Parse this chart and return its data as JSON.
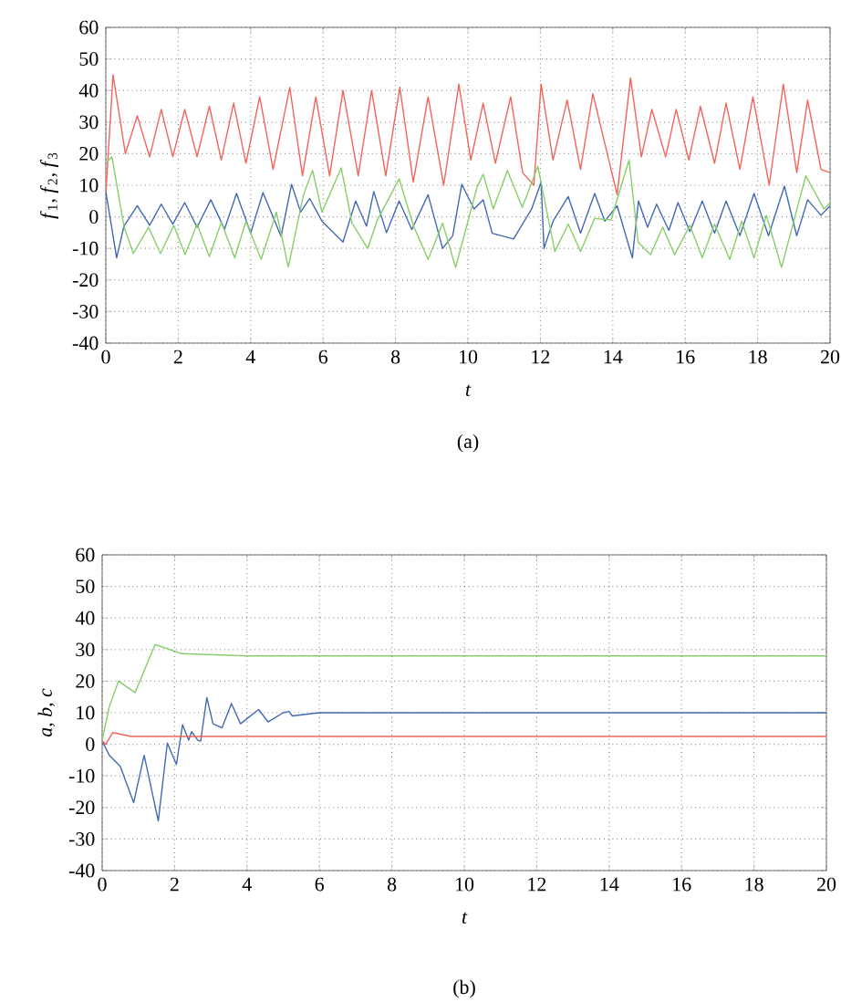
{
  "chart_data": [
    {
      "type": "line",
      "xlabel": "t",
      "ylabel": "*f*$_{1}$, *f*$_{2}$, *f*$_{3}$",
      "annotations": [
        "(a)"
      ],
      "xlim": [
        0,
        20
      ],
      "ylim": [
        -40,
        60
      ],
      "xticks": [
        0,
        2,
        4,
        6,
        8,
        10,
        12,
        14,
        16,
        18,
        20
      ],
      "yticks": [
        -40,
        -30,
        -20,
        -10,
        0,
        10,
        20,
        30,
        40,
        50,
        60
      ],
      "grid": true,
      "series": [
        {
          "color": "#f2645a",
          "x": [
            0,
            0.2,
            0.54,
            0.87,
            1.21,
            1.53,
            1.85,
            2.18,
            2.52,
            2.86,
            3.19,
            3.53,
            3.87,
            4.25,
            4.62,
            5.08,
            5.43,
            5.8,
            6.18,
            6.55,
            6.97,
            7.34,
            7.73,
            8.12,
            8.49,
            8.9,
            9.33,
            9.75,
            10.08,
            10.42,
            10.76,
            11.18,
            11.51,
            11.82,
            12.02,
            12.35,
            12.74,
            13.11,
            13.45,
            14.12,
            14.49,
            14.79,
            15.08,
            15.46,
            15.75,
            16.1,
            16.42,
            16.81,
            17.13,
            17.51,
            17.87,
            18.32,
            18.71,
            19.08,
            19.38,
            19.75,
            20
          ],
          "values": [
            7,
            45,
            20,
            32,
            19,
            34,
            19,
            34,
            19,
            35,
            18,
            36,
            17,
            38,
            15,
            41,
            13,
            38,
            13,
            40,
            13,
            40,
            13,
            41,
            11,
            38,
            10,
            42,
            18,
            36,
            17,
            38,
            14,
            10,
            42,
            18,
            37,
            15,
            39,
            7,
            44,
            19,
            34,
            19,
            34,
            18,
            35,
            17,
            36,
            15,
            38,
            10,
            42,
            14,
            37,
            15,
            14
          ]
        },
        {
          "color": "#4169b4",
          "x": [
            0,
            0.3,
            0.5,
            0.87,
            1.21,
            1.53,
            1.85,
            2.18,
            2.52,
            2.9,
            3.28,
            3.61,
            4.0,
            4.34,
            4.84,
            5.13,
            5.38,
            5.63,
            5.97,
            6.55,
            6.9,
            7.2,
            7.4,
            7.75,
            8.1,
            8.45,
            8.9,
            9.3,
            9.58,
            9.83,
            10.17,
            10.42,
            10.67,
            11.26,
            11.76,
            12.02,
            12.1,
            12.35,
            12.77,
            13.11,
            13.5,
            13.78,
            14.12,
            14.54,
            14.71,
            14.96,
            15.21,
            15.55,
            15.8,
            16.13,
            16.47,
            16.81,
            17.13,
            17.51,
            17.9,
            18.3,
            18.74,
            19.08,
            19.38,
            19.75,
            20
          ],
          "values": [
            8,
            -13,
            -3,
            3.5,
            -2.7,
            4,
            -2.3,
            4.5,
            -3.3,
            5.4,
            -3.9,
            7.4,
            -5.2,
            7.7,
            -6.2,
            10.3,
            1.5,
            5.8,
            -1.4,
            -8,
            5,
            -3,
            8,
            -5,
            5,
            -4,
            7,
            -10,
            -6,
            10.3,
            2.5,
            5.4,
            -5.2,
            -7,
            2.5,
            11,
            -10,
            -1.4,
            6.4,
            -5.2,
            7.4,
            -1.4,
            3.5,
            -13,
            5,
            -3.3,
            4,
            -4.3,
            4.5,
            -4.7,
            5,
            -5.2,
            5,
            -6,
            7.4,
            -6,
            9.7,
            -6,
            5.4,
            0.5,
            3.5
          ]
        },
        {
          "color": "#86cf6a",
          "x": [
            0,
            0.17,
            0.5,
            0.76,
            1.18,
            1.51,
            1.88,
            2.19,
            2.52,
            2.86,
            3.19,
            3.56,
            3.87,
            4.29,
            4.71,
            5.04,
            5.46,
            5.71,
            5.97,
            6.5,
            6.8,
            7.23,
            7.5,
            8.1,
            8.5,
            8.9,
            9.3,
            9.66,
            10.25,
            10.42,
            10.7,
            11.09,
            11.5,
            11.93,
            12.4,
            12.77,
            13.11,
            13.5,
            13.95,
            14.45,
            14.7,
            15.04,
            15.38,
            15.71,
            16.13,
            16.47,
            16.81,
            17.23,
            17.56,
            17.9,
            18.24,
            18.66,
            19.33,
            19.83,
            20
          ],
          "values": [
            17,
            19,
            -3,
            -11.6,
            -3.3,
            -11.6,
            -2.7,
            -12,
            -2.3,
            -12.6,
            -1.7,
            -13,
            -1.4,
            -13.5,
            1.5,
            -15.9,
            7,
            14.7,
            1.5,
            15.5,
            -2,
            -10,
            -1,
            12,
            -3,
            -13.5,
            -2,
            -16,
            9.3,
            13.5,
            2.5,
            14.7,
            3,
            16,
            -11,
            -2.3,
            -11,
            -0.5,
            -1,
            18,
            -8,
            -12,
            -3.3,
            -12,
            -2.7,
            -13,
            -2.3,
            -13.5,
            -1.4,
            -13,
            0.5,
            -16,
            13,
            2.5,
            4.4
          ]
        }
      ]
    },
    {
      "type": "line",
      "xlabel": "t",
      "ylabel": "*a*, *b*, *c*",
      "annotations": [
        "(b)"
      ],
      "xlim": [
        0,
        20
      ],
      "ylim": [
        -40,
        60
      ],
      "xticks": [
        0,
        2,
        4,
        6,
        8,
        10,
        12,
        14,
        16,
        18,
        20
      ],
      "yticks": [
        -40,
        -30,
        -20,
        -10,
        0,
        10,
        20,
        30,
        40,
        50,
        60
      ],
      "grid": true,
      "series": [
        {
          "color": "#86cf6a",
          "x": [
            0,
            0.2,
            0.45,
            0.91,
            1.46,
            2.2,
            4,
            20
          ],
          "values": [
            1.3,
            12,
            20,
            16.4,
            31.6,
            28.7,
            28,
            28
          ]
        },
        {
          "color": "#4169b4",
          "x": [
            0,
            0.2,
            0.5,
            0.87,
            1.16,
            1.55,
            1.8,
            2.05,
            2.22,
            2.39,
            2.47,
            2.64,
            2.72,
            2.89,
            3.06,
            3.31,
            3.57,
            3.82,
            4.32,
            4.58,
            5.0,
            5.16,
            5.25,
            6,
            20
          ],
          "values": [
            1,
            -3.5,
            -7,
            -18.5,
            -3.5,
            -24.3,
            0.4,
            -6.4,
            6.2,
            1.3,
            4,
            1.3,
            1,
            14.8,
            6.5,
            5.2,
            12.9,
            6.5,
            11,
            7.1,
            10,
            10.4,
            9,
            10,
            10
          ]
        },
        {
          "color": "#f2645a",
          "x": [
            0,
            0.1,
            0.29,
            0.8,
            20
          ],
          "values": [
            1,
            0,
            3.7,
            2.5,
            2.5
          ]
        }
      ]
    }
  ]
}
